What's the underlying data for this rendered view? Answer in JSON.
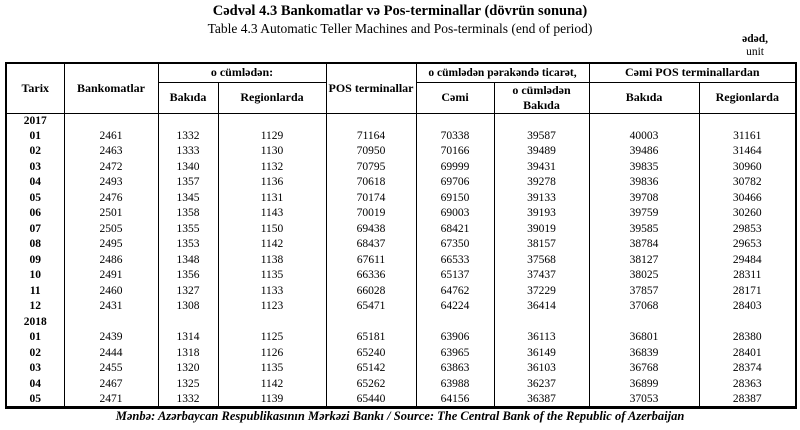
{
  "page": {
    "title_az": "Cədvəl 4.3 Bankomatlar və Pos-terminallar (dövrün sonuna)",
    "title_en": "Table 4.3 Automatic Teller Machines and Pos-terminals (end of period)",
    "unit_az": "ədəd,",
    "unit_en": "unit",
    "source": "Mənbə: Azərbaycan Respublikasının Mərkəzi Bankı / Source: The Central Bank of the Republic of Azerbaijan"
  },
  "table": {
    "headers": {
      "tarix": "Tarix",
      "bankomatlar": "Bankomatlar",
      "o_cumladan": "o cümlədən:",
      "bakida": "Bakıda",
      "regionlarda": "Regionlarda",
      "pos_terminallar": "POS terminallar",
      "parakanda": "o cümlədən pərakəndə ticarət,",
      "cami": "Cəmi",
      "o_cumladan_bakida": "o cümlədən Bakıda",
      "cami_pos": "Cəmi POS terminallardan",
      "pos_bakida": "Bakıda",
      "pos_regionlarda": "Regionlarda"
    },
    "sections": [
      {
        "year": "2017",
        "rows": [
          {
            "month": "01",
            "values": [
              2461,
              1332,
              1129,
              71164,
              70338,
              39587,
              40003,
              31161
            ]
          },
          {
            "month": "02",
            "values": [
              2463,
              1333,
              1130,
              70950,
              70166,
              39489,
              39486,
              31464
            ]
          },
          {
            "month": "03",
            "values": [
              2472,
              1340,
              1132,
              70795,
              69999,
              39431,
              39835,
              30960
            ]
          },
          {
            "month": "04",
            "values": [
              2493,
              1357,
              1136,
              70618,
              69706,
              39278,
              39836,
              30782
            ]
          },
          {
            "month": "05",
            "values": [
              2476,
              1345,
              1131,
              70174,
              69150,
              39133,
              39708,
              30466
            ]
          },
          {
            "month": "06",
            "values": [
              2501,
              1358,
              1143,
              70019,
              69003,
              39193,
              39759,
              30260
            ]
          },
          {
            "month": "07",
            "values": [
              2505,
              1355,
              1150,
              69438,
              68421,
              39019,
              39585,
              29853
            ]
          },
          {
            "month": "08",
            "values": [
              2495,
              1353,
              1142,
              68437,
              67350,
              38157,
              38784,
              29653
            ]
          },
          {
            "month": "09",
            "values": [
              2486,
              1348,
              1138,
              67611,
              66533,
              37568,
              38127,
              29484
            ]
          },
          {
            "month": "10",
            "values": [
              2491,
              1356,
              1135,
              66336,
              65137,
              37437,
              38025,
              28311
            ]
          },
          {
            "month": "11",
            "values": [
              2460,
              1327,
              1133,
              66028,
              64762,
              37229,
              37857,
              28171
            ]
          },
          {
            "month": "12",
            "values": [
              2431,
              1308,
              1123,
              65471,
              64224,
              36414,
              37068,
              28403
            ]
          }
        ]
      },
      {
        "year": "2018",
        "rows": [
          {
            "month": "01",
            "values": [
              2439,
              1314,
              1125,
              65181,
              63906,
              36113,
              36801,
              28380
            ]
          },
          {
            "month": "02",
            "values": [
              2444,
              1318,
              1126,
              65240,
              63965,
              36149,
              36839,
              28401
            ]
          },
          {
            "month": "03",
            "values": [
              2455,
              1320,
              1135,
              65142,
              63863,
              36103,
              36768,
              28374
            ]
          },
          {
            "month": "04",
            "values": [
              2467,
              1325,
              1142,
              65262,
              63988,
              36237,
              36899,
              28363
            ]
          },
          {
            "month": "05",
            "values": [
              2471,
              1332,
              1139,
              65440,
              64156,
              36387,
              37053,
              28387
            ]
          }
        ]
      }
    ]
  }
}
